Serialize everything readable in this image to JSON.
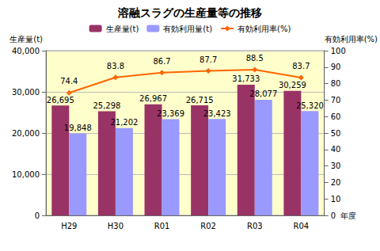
{
  "chart_data": {
    "type": "bar",
    "title": "溶融スラグの生産量等の推移",
    "x_label": "年度",
    "y_label": "生産量(t)",
    "y2_label": "有効利用率(%)",
    "categories": [
      "H29",
      "H30",
      "R01",
      "R02",
      "R03",
      "R04"
    ],
    "series": [
      {
        "name": "生産量(t)",
        "type": "bar",
        "color": "#993366",
        "values": [
          26695,
          25298,
          26967,
          26715,
          31733,
          30259
        ],
        "value_labels": [
          "26,695",
          "25,298",
          "26,967",
          "26,715",
          "31,733",
          "30,259"
        ]
      },
      {
        "name": "有効利用量(t)",
        "type": "bar",
        "color": "#9999ff",
        "values": [
          19848,
          21202,
          23369,
          23423,
          28077,
          25320
        ],
        "value_labels": [
          "19,848",
          "21,202",
          "23,369",
          "23,423",
          "28,077",
          "25,320"
        ]
      },
      {
        "name": "有効利用率(%)",
        "type": "line",
        "color": "#ff6600",
        "axis": "y2",
        "marker": "diamond",
        "values": [
          74.4,
          83.8,
          86.7,
          87.7,
          88.5,
          83.7
        ]
      }
    ],
    "ylim": [
      0,
      40000
    ],
    "yticks": [
      0,
      {
        "value": 10000,
        "label": "10,000"
      },
      {
        "value": 20000,
        "label": "20,000"
      },
      {
        "value": 30000,
        "label": "30,000"
      },
      {
        "value": 40000,
        "label": "40,000"
      }
    ],
    "y2lim": [
      0,
      100
    ],
    "y2ticks": [
      0,
      10,
      20,
      30,
      40,
      50,
      60,
      70,
      80,
      90,
      100
    ],
    "grid": true,
    "legend": "top",
    "data_labels": true
  }
}
